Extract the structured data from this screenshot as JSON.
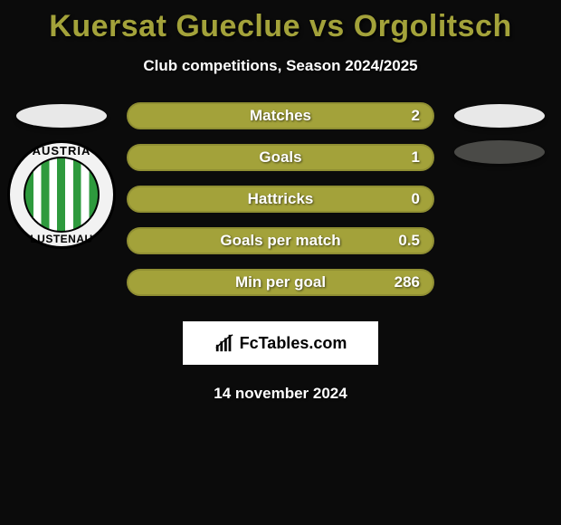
{
  "title_color": "#a3a23a",
  "title": "Kuersat Gueclue vs Orgolitsch",
  "subtitle": "Club competitions, Season 2024/2025",
  "left_logos": {
    "ellipse_count": 1,
    "club_badge": true,
    "badge_top_text": "AUSTRIA",
    "badge_bottom_text": "LUSTENAU"
  },
  "right_logos": {
    "ellipses": [
      {
        "color": "#e8e8e8"
      },
      {
        "color": "#4a4a47"
      }
    ]
  },
  "bar_style": {
    "fill_color": "#a3a23a",
    "border_color": "#908f33",
    "text_shadow": "1px 1px 2px rgba(0,0,0,0.6)",
    "fontsize": 17
  },
  "stats": [
    {
      "label": "Matches",
      "value": "2"
    },
    {
      "label": "Goals",
      "value": "1"
    },
    {
      "label": "Hattricks",
      "value": "0"
    },
    {
      "label": "Goals per match",
      "value": "0.5"
    },
    {
      "label": "Min per goal",
      "value": "286"
    }
  ],
  "footer_brand": "FcTables.com",
  "date": "14 november 2024",
  "background_color": "#0b0b0b"
}
